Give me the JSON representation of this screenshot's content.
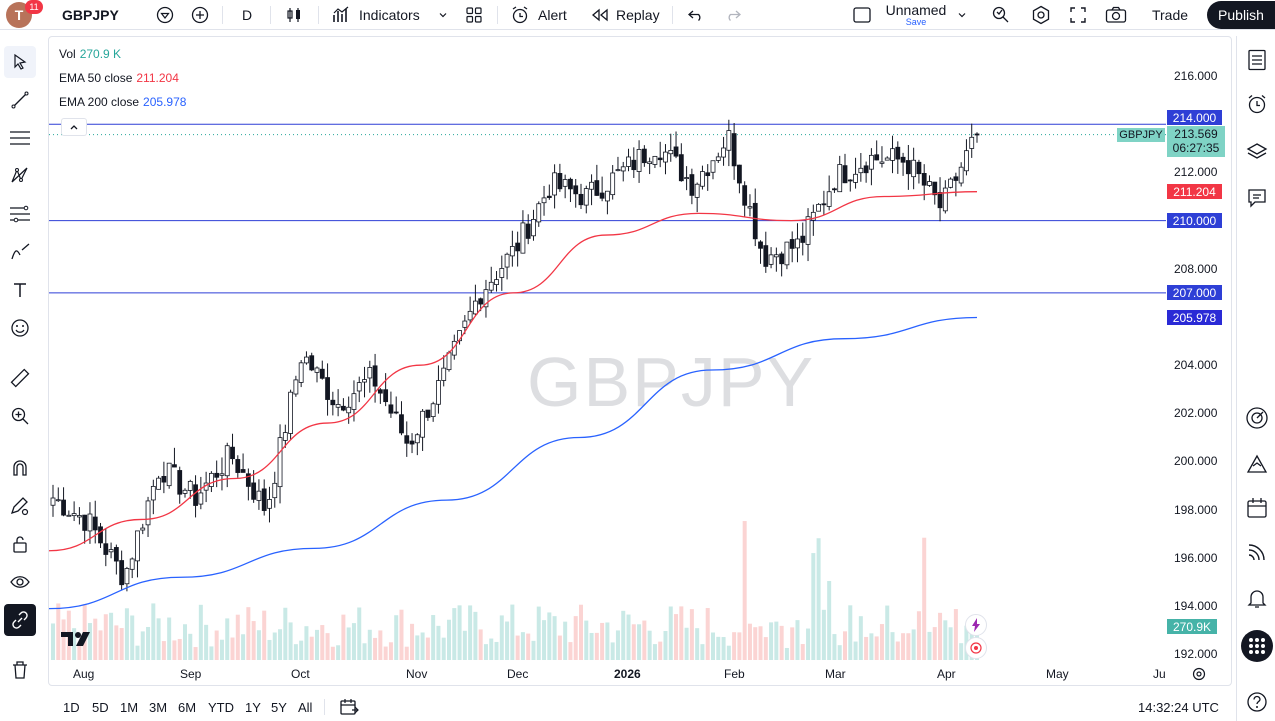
{
  "topbar": {
    "avatar_letter": "T",
    "notifications": "11",
    "symbol": "GBPJPY",
    "interval": "D",
    "indicators_label": "Indicators",
    "alert_label": "Alert",
    "replay_label": "Replay",
    "layout_name": "Unnamed",
    "save_label": "Save",
    "trade_label": "Trade",
    "publish_label": "Publish"
  },
  "legend": {
    "vol_label": "Vol",
    "vol_value": "270.9 K",
    "ema50_label": "EMA 50 close",
    "ema50_value": "211.204",
    "ema200_label": "EMA 200 close",
    "ema200_value": "205.978"
  },
  "watermark": "GBPJPY",
  "price_axis": {
    "ticks": [
      "216.000",
      "212.000",
      "208.000",
      "204.000",
      "202.000",
      "200.000",
      "198.000",
      "196.000",
      "194.000",
      "192.000"
    ]
  },
  "time_axis": {
    "ticks": [
      "Aug",
      "Sep",
      "Oct",
      "Nov",
      "Dec",
      "2026",
      "Feb",
      "Mar",
      "Apr",
      "May",
      "Ju"
    ]
  },
  "labels": {
    "level_214": "214.000",
    "level_210": "210.000",
    "level_207": "207.000",
    "symbol_tag": "GBPJPY",
    "last_price": "213.569",
    "countdown": "06:27:35",
    "ema50_tag": "211.204",
    "ema200_tag": "205.978",
    "volume_tag": "270.9K"
  },
  "bottombar": {
    "ranges": [
      "1D",
      "5D",
      "1M",
      "3M",
      "6M",
      "YTD",
      "1Y",
      "5Y",
      "All"
    ],
    "clock": "14:32:24 UTC"
  },
  "colors": {
    "up": "#26a69a",
    "down": "#ef5350",
    "ema50": "#f23645",
    "ema200": "#2962ff",
    "hline": "#2e3fd6"
  },
  "chart_data": {
    "type": "candlestick",
    "symbol": "GBPJPY",
    "interval": "D",
    "horizontal_lines": [
      214.0,
      210.0,
      207.0
    ],
    "ylim": [
      191.4,
      217.1
    ],
    "anchors": [
      {
        "m": "Jul end",
        "p": 198.5
      },
      {
        "m": "Aug start",
        "p": 197.5
      },
      {
        "m": "Aug mid",
        "p": 195.2
      },
      {
        "m": "Aug late",
        "p": 199.8
      },
      {
        "m": "Sep",
        "p": 198.5
      },
      {
        "m": "Sep late",
        "p": 200.3
      },
      {
        "m": "Oct start",
        "p": 198.0
      },
      {
        "m": "Oct early",
        "p": 204.5
      },
      {
        "m": "Oct mid",
        "p": 202.4
      },
      {
        "m": "Oct late",
        "p": 203.5
      },
      {
        "m": "Nov",
        "p": 200.7
      },
      {
        "m": "Nov mid",
        "p": 203.5
      },
      {
        "m": "Nov late",
        "p": 207.0
      },
      {
        "m": "Dec early",
        "p": 208.8
      },
      {
        "m": "Dec mid",
        "p": 211.5
      },
      {
        "m": "Dec late",
        "p": 211.0
      },
      {
        "m": "Jan early",
        "p": 212.0
      },
      {
        "m": "Jan",
        "p": 213.2
      },
      {
        "m": "Jan late",
        "p": 211.5
      },
      {
        "m": "Feb early",
        "p": 213.5
      },
      {
        "m": "Feb mid",
        "p": 208.5
      },
      {
        "m": "Feb late",
        "p": 209.0
      },
      {
        "m": "Mar early",
        "p": 211.8
      },
      {
        "m": "Mar mid",
        "p": 212.6
      },
      {
        "m": "Mar late",
        "p": 212.5
      },
      {
        "m": "Apr early",
        "p": 210.5
      },
      {
        "m": "Apr",
        "p": 213.6
      }
    ],
    "ema50": [
      196.3,
      197.6,
      199.3,
      201.6,
      204.0,
      207.0,
      209.4,
      210.3,
      210.0,
      211.0,
      211.2
    ],
    "ema200": [
      193.9,
      195.2,
      196.4,
      198.4,
      201.0,
      203.8,
      205.1,
      205.98
    ],
    "volume_last": "270.9K"
  }
}
